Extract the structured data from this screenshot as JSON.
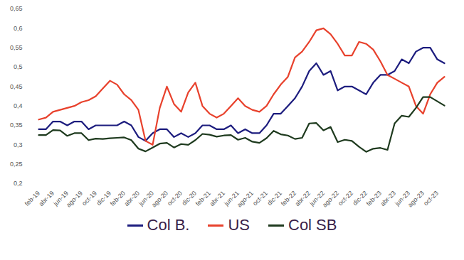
{
  "chart_data": {
    "type": "line",
    "categories": [
      "feb-19",
      null,
      "abr-19",
      null,
      "jun-19",
      null,
      "ago-19",
      null,
      "oct-19",
      null,
      "dic-19",
      null,
      "feb-20",
      null,
      "abr-20",
      null,
      "jun-20",
      null,
      "ago-20",
      null,
      "oct-20",
      null,
      "dic-20",
      null,
      "feb-21",
      null,
      "abr-21",
      null,
      "jun-21",
      null,
      "ago-21",
      null,
      "oct-21",
      null,
      "dic-21",
      null,
      "feb-22",
      null,
      "abr-22",
      null,
      "jun-22",
      null,
      "ago-22",
      null,
      "oct-22",
      null,
      "dic-22",
      null,
      "feb-23",
      null,
      "abr-23",
      null,
      "jun-23",
      null,
      "ago-23",
      null,
      "oct-23",
      null
    ],
    "series": [
      {
        "name": "Col B.",
        "color": "#1c1c7e",
        "values": [
          0.34,
          0.34,
          0.36,
          0.36,
          0.35,
          0.36,
          0.36,
          0.34,
          0.35,
          0.35,
          0.35,
          0.35,
          0.36,
          0.35,
          0.32,
          0.31,
          0.33,
          0.34,
          0.34,
          0.32,
          0.33,
          0.32,
          0.33,
          0.35,
          0.35,
          0.34,
          0.34,
          0.35,
          0.33,
          0.34,
          0.33,
          0.33,
          0.35,
          0.38,
          0.38,
          0.4,
          0.42,
          0.45,
          0.49,
          0.51,
          0.48,
          0.49,
          0.44,
          0.45,
          0.45,
          0.44,
          0.43,
          0.46,
          0.48,
          0.48,
          0.49,
          0.52,
          0.51,
          0.54,
          0.55,
          0.55,
          0.52,
          0.51
        ]
      },
      {
        "name": "US",
        "color": "#e8412c",
        "values": [
          0.365,
          0.37,
          0.385,
          0.39,
          0.395,
          0.4,
          0.41,
          0.415,
          0.425,
          0.445,
          0.465,
          0.455,
          0.43,
          0.415,
          0.39,
          0.31,
          0.3,
          0.395,
          0.45,
          0.405,
          0.385,
          0.435,
          0.46,
          0.4,
          0.38,
          0.37,
          0.38,
          0.4,
          0.42,
          0.4,
          0.39,
          0.385,
          0.4,
          0.43,
          0.455,
          0.475,
          0.525,
          0.54,
          0.565,
          0.595,
          0.6,
          0.585,
          0.56,
          0.53,
          0.53,
          0.565,
          0.56,
          0.545,
          0.515,
          0.48,
          0.47,
          0.46,
          0.45,
          0.4,
          0.38,
          0.43,
          0.46,
          0.475
        ]
      },
      {
        "name": "Col SB",
        "color": "#1e3a1e",
        "values": [
          0.325,
          0.325,
          0.338,
          0.337,
          0.323,
          0.33,
          0.33,
          0.312,
          0.316,
          0.315,
          0.317,
          0.318,
          0.319,
          0.312,
          0.29,
          0.283,
          0.293,
          0.303,
          0.305,
          0.293,
          0.302,
          0.3,
          0.312,
          0.328,
          0.326,
          0.321,
          0.324,
          0.325,
          0.313,
          0.318,
          0.308,
          0.305,
          0.317,
          0.336,
          0.327,
          0.324,
          0.315,
          0.318,
          0.355,
          0.356,
          0.337,
          0.346,
          0.307,
          0.313,
          0.31,
          0.295,
          0.282,
          0.29,
          0.292,
          0.287,
          0.355,
          0.375,
          0.372,
          0.395,
          0.423,
          0.423,
          0.412,
          0.401
        ]
      }
    ],
    "ylim": [
      0.2,
      0.65
    ],
    "yticks": [
      {
        "value": 0.2,
        "label": "0,2"
      },
      {
        "value": 0.25,
        "label": "0,25"
      },
      {
        "value": 0.3,
        "label": "0,3"
      },
      {
        "value": 0.35,
        "label": "0,35"
      },
      {
        "value": 0.4,
        "label": "0,4"
      },
      {
        "value": 0.45,
        "label": "0,45"
      },
      {
        "value": 0.5,
        "label": "0,5"
      },
      {
        "value": 0.55,
        "label": "0,55"
      },
      {
        "value": 0.6,
        "label": "0,6"
      },
      {
        "value": 0.65,
        "label": "0,65"
      }
    ],
    "grid": false,
    "legend": "bottom"
  }
}
